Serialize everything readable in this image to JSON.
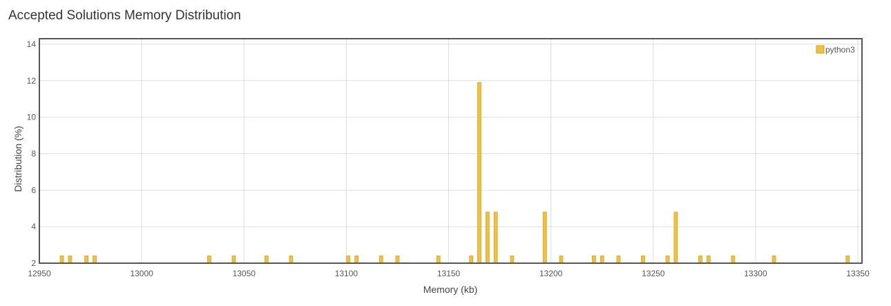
{
  "title": "Accepted Solutions Memory Distribution",
  "chart_data": {
    "type": "bar",
    "title": "Accepted Solutions Memory Distribution",
    "xlabel": "Memory (kb)",
    "ylabel": "Distribution (%)",
    "xlim": [
      12950,
      13352
    ],
    "ylim": [
      2,
      14.3
    ],
    "xticks": [
      12950,
      13000,
      13050,
      13100,
      13150,
      13200,
      13250,
      13300,
      13350
    ],
    "yticks": [
      2,
      4,
      6,
      8,
      10,
      12,
      14
    ],
    "grid": true,
    "legend_position": "top-right",
    "series": [
      {
        "name": "python3",
        "color": "#f0c040",
        "points": [
          {
            "x": 12961,
            "y": 2.4
          },
          {
            "x": 12965,
            "y": 2.4
          },
          {
            "x": 12973,
            "y": 2.4
          },
          {
            "x": 12977,
            "y": 2.4
          },
          {
            "x": 13033,
            "y": 2.4
          },
          {
            "x": 13045,
            "y": 2.4
          },
          {
            "x": 13061,
            "y": 2.4
          },
          {
            "x": 13073,
            "y": 2.4
          },
          {
            "x": 13101,
            "y": 2.4
          },
          {
            "x": 13105,
            "y": 2.4
          },
          {
            "x": 13117,
            "y": 2.4
          },
          {
            "x": 13125,
            "y": 2.4
          },
          {
            "x": 13145,
            "y": 2.4
          },
          {
            "x": 13161,
            "y": 2.4
          },
          {
            "x": 13165,
            "y": 11.9
          },
          {
            "x": 13169,
            "y": 4.8
          },
          {
            "x": 13173,
            "y": 4.8
          },
          {
            "x": 13181,
            "y": 2.4
          },
          {
            "x": 13197,
            "y": 4.8
          },
          {
            "x": 13205,
            "y": 2.4
          },
          {
            "x": 13221,
            "y": 2.4
          },
          {
            "x": 13225,
            "y": 2.4
          },
          {
            "x": 13233,
            "y": 2.4
          },
          {
            "x": 13245,
            "y": 2.4
          },
          {
            "x": 13257,
            "y": 2.4
          },
          {
            "x": 13261,
            "y": 4.8
          },
          {
            "x": 13273,
            "y": 2.4
          },
          {
            "x": 13277,
            "y": 2.4
          },
          {
            "x": 13289,
            "y": 2.4
          },
          {
            "x": 13309,
            "y": 2.4
          },
          {
            "x": 13345,
            "y": 2.4
          }
        ]
      }
    ]
  }
}
